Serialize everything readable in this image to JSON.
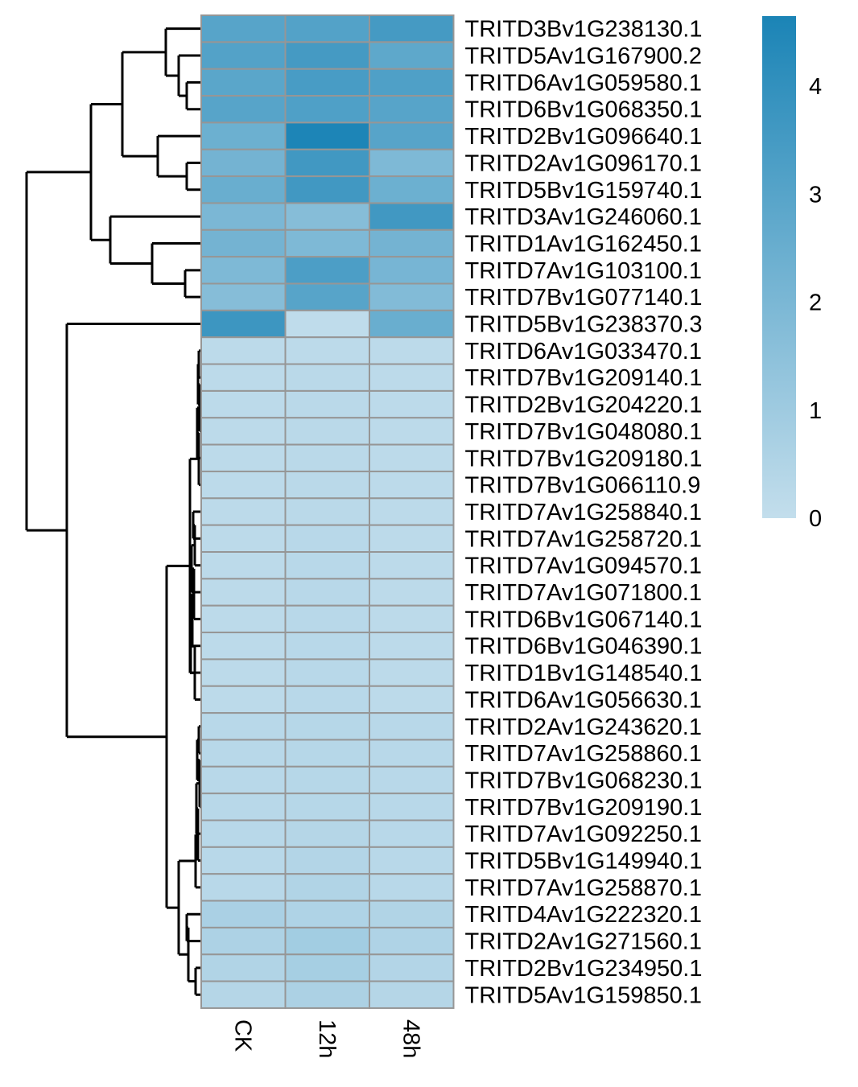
{
  "chart_data": {
    "type": "heatmap",
    "title": "",
    "columns": [
      "CK",
      "12h",
      "48h"
    ],
    "rows": [
      "TRITD3Bv1G238130.1",
      "TRITD5Av1G167900.2",
      "TRITD6Av1G059580.1",
      "TRITD6Bv1G068350.1",
      "TRITD2Bv1G096640.1",
      "TRITD2Av1G096170.1",
      "TRITD5Bv1G159740.1",
      "TRITD3Av1G246060.1",
      "TRITD1Av1G162450.1",
      "TRITD7Av1G103100.1",
      "TRITD7Bv1G077140.1",
      "TRITD5Bv1G238370.3",
      "TRITD6Av1G033470.1",
      "TRITD7Bv1G209140.1",
      "TRITD2Bv1G204220.1",
      "TRITD7Bv1G048080.1",
      "TRITD7Bv1G209180.1",
      "TRITD7Bv1G066110.9",
      "TRITD7Av1G258840.1",
      "TRITD7Av1G258720.1",
      "TRITD7Av1G094570.1",
      "TRITD7Av1G071800.1",
      "TRITD6Bv1G067140.1",
      "TRITD6Bv1G046390.1",
      "TRITD1Bv1G148540.1",
      "TRITD6Av1G056630.1",
      "TRITD2Av1G243620.1",
      "TRITD7Av1G258860.1",
      "TRITD7Bv1G068230.1",
      "TRITD7Bv1G209190.1",
      "TRITD7Av1G092250.1",
      "TRITD5Bv1G149940.1",
      "TRITD7Av1G258870.1",
      "TRITD4Av1G222320.1",
      "TRITD2Av1G271560.1",
      "TRITD2Bv1G234950.1",
      "TRITD5Av1G159850.1"
    ],
    "values": [
      [
        3.0,
        3.1,
        3.5
      ],
      [
        3.1,
        3.5,
        2.8
      ],
      [
        2.9,
        3.4,
        3.2
      ],
      [
        3.0,
        3.2,
        3.0
      ],
      [
        2.4,
        4.6,
        3.0
      ],
      [
        2.2,
        3.6,
        1.9
      ],
      [
        2.5,
        3.6,
        2.4
      ],
      [
        2.0,
        1.7,
        3.6
      ],
      [
        2.2,
        1.9,
        2.2
      ],
      [
        1.9,
        3.3,
        2.1
      ],
      [
        1.7,
        3.0,
        1.8
      ],
      [
        3.7,
        0.1,
        2.5
      ],
      [
        0.2,
        0.2,
        0.2
      ],
      [
        0.2,
        0.25,
        0.2
      ],
      [
        0.2,
        0.25,
        0.2
      ],
      [
        0.2,
        0.25,
        0.2
      ],
      [
        0.2,
        0.25,
        0.2
      ],
      [
        0.2,
        0.25,
        0.2
      ],
      [
        0.2,
        0.25,
        0.2
      ],
      [
        0.2,
        0.3,
        0.2
      ],
      [
        0.2,
        0.3,
        0.2
      ],
      [
        0.2,
        0.3,
        0.2
      ],
      [
        0.2,
        0.3,
        0.2
      ],
      [
        0.2,
        0.3,
        0.2
      ],
      [
        0.2,
        0.3,
        0.2
      ],
      [
        0.2,
        0.3,
        0.2
      ],
      [
        0.3,
        0.35,
        0.3
      ],
      [
        0.3,
        0.35,
        0.3
      ],
      [
        0.3,
        0.35,
        0.3
      ],
      [
        0.3,
        0.35,
        0.3
      ],
      [
        0.3,
        0.4,
        0.3
      ],
      [
        0.3,
        0.45,
        0.3
      ],
      [
        0.3,
        0.5,
        0.3
      ],
      [
        0.7,
        0.55,
        0.5
      ],
      [
        0.6,
        0.9,
        0.55
      ],
      [
        0.5,
        0.8,
        0.45
      ],
      [
        0.4,
        0.65,
        0.4
      ]
    ],
    "color_scale": {
      "min": 0,
      "max": 4.65,
      "low_color": "#c3deec",
      "high_color": "#1b84b6",
      "ticks": [
        0,
        1,
        2,
        3,
        4
      ]
    },
    "cell_border_color": "#969696",
    "row_dendrogram": true,
    "column_dendrogram": false
  }
}
